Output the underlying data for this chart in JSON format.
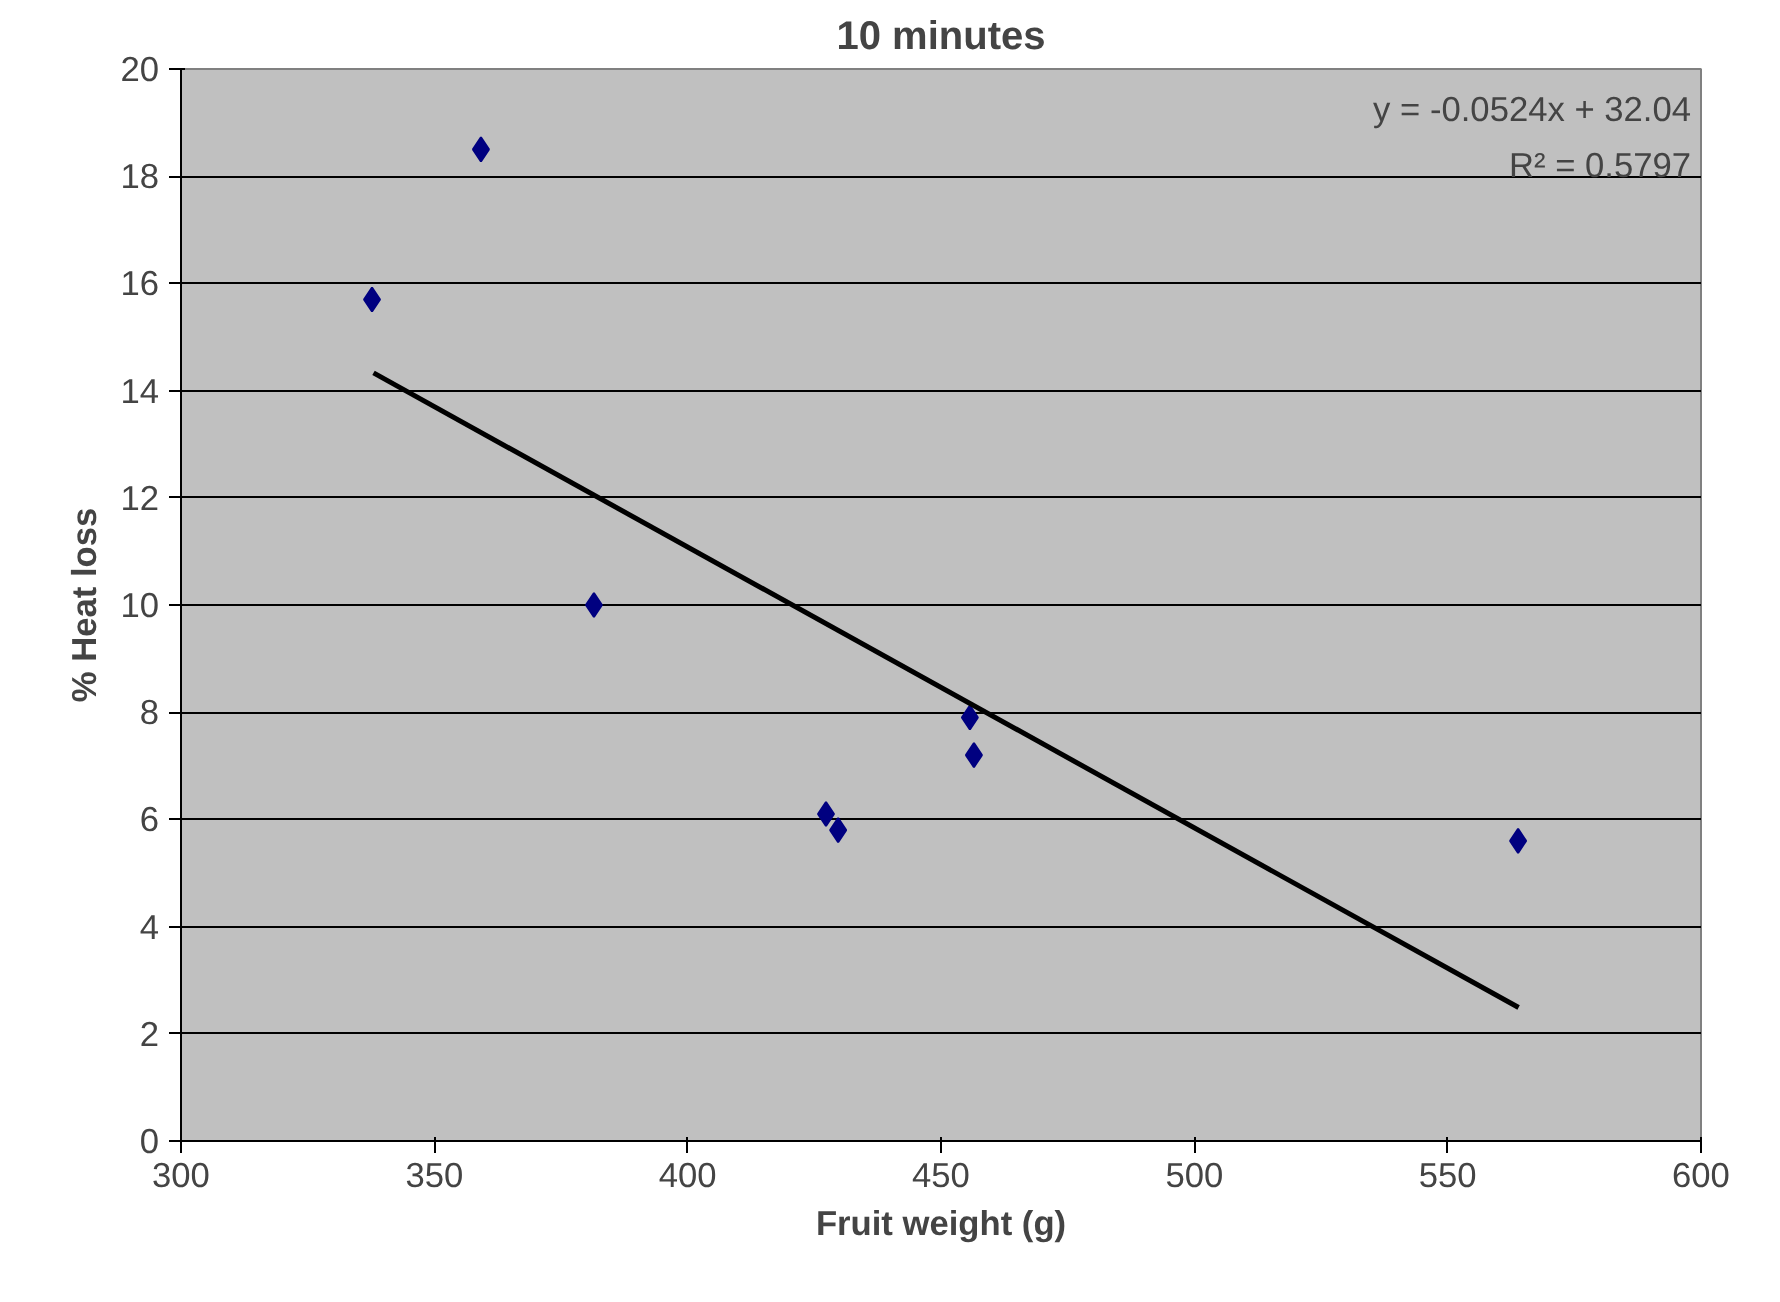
{
  "chart_data": {
    "type": "scatter",
    "title": "10 minutes",
    "xlabel": "Fruit weight (g)",
    "ylabel": "% Heat loss",
    "series": [
      {
        "color": "#000080",
        "x": [
          337.7,
          359.2,
          381.5,
          427.3,
          429.7,
          455.7,
          456.5,
          563.9
        ],
        "values": [
          15.7,
          18.5,
          10.0,
          6.1,
          5.8,
          7.9,
          7.2,
          5.6
        ],
        "marker": "diamond"
      },
      {
        "type": "line",
        "color": "#000000",
        "x": [
          338,
          564
        ],
        "values": [
          14.33,
          2.49
        ],
        "marker": "none",
        "line_style": "solid"
      }
    ],
    "annotations": [
      "y = -0.0524x + 32.04",
      "R² = 0.5797"
    ],
    "xlim": [
      300,
      600
    ],
    "xticks": [
      300,
      350,
      400,
      450,
      500,
      550,
      600
    ],
    "ylim": [
      0,
      20
    ],
    "yticks": [
      0,
      2,
      4,
      6,
      8,
      10,
      12,
      14,
      16,
      18,
      20
    ],
    "grid": "y"
  }
}
